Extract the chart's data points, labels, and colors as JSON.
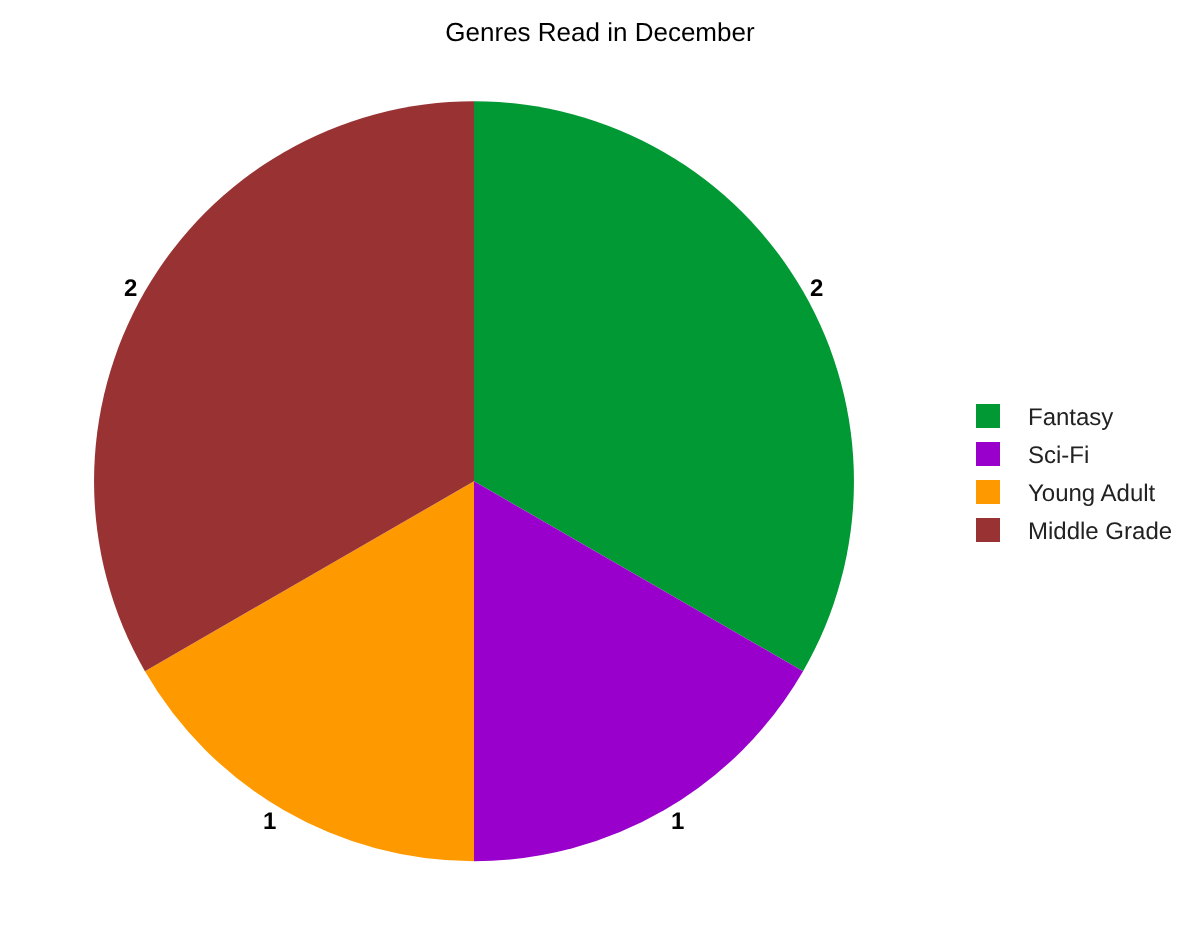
{
  "chart_data": {
    "type": "pie",
    "title": "Genres Read in December",
    "categories": [
      "Fantasy",
      "Sci-Fi",
      "Young Adult",
      "Middle Grade"
    ],
    "values": [
      2,
      1,
      1,
      2
    ],
    "colors": [
      "#009933",
      "#9900cc",
      "#ff9900",
      "#993333"
    ],
    "data_labels": true,
    "legend": "right"
  }
}
